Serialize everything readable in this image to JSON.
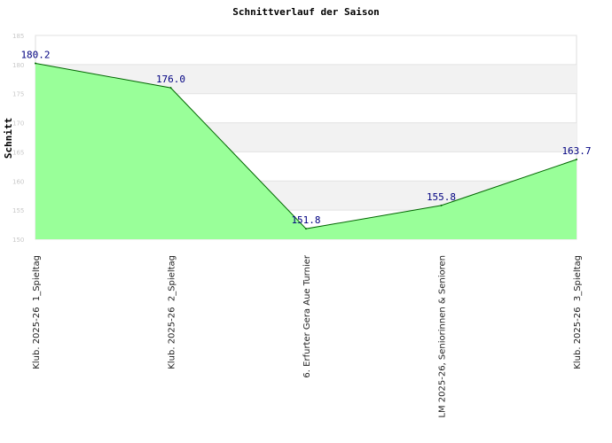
{
  "chart_data": {
    "type": "area",
    "title": "Schnittverlauf der Saison",
    "xlabel": "",
    "ylabel": "Schnitt",
    "ylim": [
      150,
      185
    ],
    "yticks": [
      150,
      155,
      160,
      165,
      170,
      175,
      180,
      185
    ],
    "categories": [
      "Klub. 2025-26  1_Spieltag",
      "Klub. 2025-26  2_Spieltag",
      "6. Erfurter Gera Aue Turnier",
      "LM 2025-26, Seniorinnen & Senioren",
      "Klub. 2025-26  3_Spieltag"
    ],
    "values": [
      180.2,
      176.0,
      151.8,
      155.8,
      163.7
    ],
    "data_labels": [
      "180.2",
      "176.0",
      "151.8",
      "155.8",
      "163.7"
    ],
    "grid": true,
    "colors": {
      "fill": "#99ff99",
      "line": "#006600",
      "band": "#f2f2f2",
      "label": "#000080"
    }
  }
}
